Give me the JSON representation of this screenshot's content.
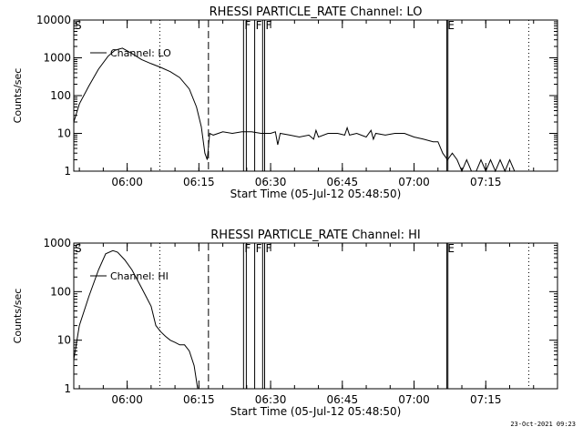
{
  "footer": {
    "timestamp": "23-Oct-2021 09:23"
  },
  "chart_data": [
    {
      "type": "line",
      "title": "RHESSI PARTICLE_RATE Channel: LO",
      "xlabel": "Start Time (05-Jul-12 05:48:50)",
      "ylabel": "Counts/sec",
      "yscale": "log",
      "ylim": [
        1,
        10000
      ],
      "y_ticks": [
        {
          "value": 1,
          "label": "1"
        },
        {
          "value": 10,
          "label": "10"
        },
        {
          "value": 100,
          "label": "100"
        },
        {
          "value": 1000,
          "label": "1000"
        },
        {
          "value": 10000,
          "label": "10000"
        }
      ],
      "xlim": [
        "05:48:50",
        "07:30:00"
      ],
      "x_ticks": [
        {
          "value": "06:00",
          "label": "06:00"
        },
        {
          "value": "06:15",
          "label": "06:15"
        },
        {
          "value": "06:30",
          "label": "06:30"
        },
        {
          "value": "06:45",
          "label": "06:45"
        },
        {
          "value": "07:00",
          "label": "07:00"
        },
        {
          "value": "07:15",
          "label": "07:15"
        }
      ],
      "series": [
        {
          "name": "Channel: LO",
          "x": [
            "05:48:50",
            "05:50:00",
            "05:52:00",
            "05:54:00",
            "05:56:00",
            "05:57:30",
            "05:59:00",
            "06:01:00",
            "06:03:00",
            "06:05:00",
            "06:07:00",
            "06:09:00",
            "06:11:00",
            "06:13:00",
            "06:14:30",
            "06:15:30",
            "06:16:15",
            "06:16:45",
            "06:17:15",
            "06:18:00",
            "06:20:00",
            "06:22:00",
            "06:24:00",
            "06:26:00",
            "06:28:00",
            "06:30:00",
            "06:31:00",
            "06:31:30",
            "06:32:00",
            "06:34:00",
            "06:36:00",
            "06:38:00",
            "06:39:00",
            "06:39:30",
            "06:40:00",
            "06:42:00",
            "06:44:00",
            "06:45:30",
            "06:46:00",
            "06:46:30",
            "06:48:00",
            "06:50:00",
            "06:51:00",
            "06:51:30",
            "06:52:00",
            "06:54:00",
            "06:56:00",
            "06:58:00",
            "07:00:00",
            "07:02:00",
            "07:04:00",
            "07:05:00",
            "07:06:00",
            "07:07:00",
            "07:08:00",
            "07:09:00",
            "07:10:00",
            "07:11:00",
            "07:12:00",
            "07:13:00",
            "07:14:00",
            "07:15:00",
            "07:16:00",
            "07:17:00",
            "07:18:00",
            "07:19:00",
            "07:20:00",
            "07:21:00",
            "07:22:00"
          ],
          "y": [
            20,
            60,
            180,
            500,
            1100,
            1600,
            1800,
            1300,
            900,
            700,
            560,
            430,
            300,
            150,
            50,
            15,
            3,
            2,
            10,
            9,
            11,
            10,
            11,
            11,
            10,
            10,
            11,
            5,
            10,
            9,
            8,
            9,
            7,
            12,
            8,
            10,
            10,
            9,
            14,
            9,
            10,
            8,
            12,
            7,
            10,
            9,
            10,
            10,
            8,
            7,
            6,
            6,
            3,
            2,
            3,
            2,
            1,
            2,
            1,
            1,
            2,
            1,
            2,
            1,
            2,
            1,
            2,
            1,
            1
          ]
        }
      ],
      "vlines": [
        {
          "x": "06:06:50",
          "style": "dotted"
        },
        {
          "x": "06:17:00",
          "style": "dashed"
        },
        {
          "x": "06:24:20",
          "style": "solid",
          "label": "F"
        },
        {
          "x": "06:24:55",
          "style": "solid"
        },
        {
          "x": "06:26:40",
          "style": "solid",
          "label": "F"
        },
        {
          "x": "06:28:20",
          "style": "solid"
        },
        {
          "x": "06:28:45",
          "style": "solid",
          "label": "F"
        },
        {
          "x": "07:06:50",
          "style": "solid",
          "label": "E"
        },
        {
          "x": "07:07:05",
          "style": "solid"
        },
        {
          "x": "07:24:00",
          "style": "dotted"
        }
      ],
      "corner_label": "S"
    },
    {
      "type": "line",
      "title": "RHESSI PARTICLE_RATE Channel: HI",
      "xlabel": "Start Time (05-Jul-12 05:48:50)",
      "ylabel": "Counts/sec",
      "yscale": "log",
      "ylim": [
        1,
        1000
      ],
      "y_ticks": [
        {
          "value": 1,
          "label": "1"
        },
        {
          "value": 10,
          "label": "10"
        },
        {
          "value": 100,
          "label": "100"
        },
        {
          "value": 1000,
          "label": "1000"
        }
      ],
      "xlim": [
        "05:48:50",
        "07:30:00"
      ],
      "x_ticks": [
        {
          "value": "06:00",
          "label": "06:00"
        },
        {
          "value": "06:15",
          "label": "06:15"
        },
        {
          "value": "06:30",
          "label": "06:30"
        },
        {
          "value": "06:45",
          "label": "06:45"
        },
        {
          "value": "07:00",
          "label": "07:00"
        },
        {
          "value": "07:15",
          "label": "07:15"
        }
      ],
      "series": [
        {
          "name": "Channel: HI",
          "x": [
            "05:48:50",
            "05:50:00",
            "05:52:00",
            "05:54:00",
            "05:55:30",
            "05:57:00",
            "05:58:00",
            "05:59:30",
            "06:01:00",
            "06:03:00",
            "06:05:00",
            "06:06:00",
            "06:07:00",
            "06:08:00",
            "06:09:00",
            "06:10:00",
            "06:11:00",
            "06:12:00",
            "06:13:00",
            "06:14:00",
            "06:14:45"
          ],
          "y": [
            4,
            20,
            80,
            280,
            600,
            700,
            650,
            450,
            280,
            120,
            50,
            20,
            15,
            12,
            10,
            9,
            8,
            8,
            6,
            3,
            1
          ]
        }
      ],
      "vlines": [
        {
          "x": "06:06:50",
          "style": "dotted"
        },
        {
          "x": "06:17:00",
          "style": "dashed"
        },
        {
          "x": "06:24:20",
          "style": "solid",
          "label": "F"
        },
        {
          "x": "06:24:55",
          "style": "solid"
        },
        {
          "x": "06:26:40",
          "style": "solid",
          "label": "F"
        },
        {
          "x": "06:28:20",
          "style": "solid"
        },
        {
          "x": "06:28:45",
          "style": "solid",
          "label": "F"
        },
        {
          "x": "07:06:50",
          "style": "solid",
          "label": "E"
        },
        {
          "x": "07:07:05",
          "style": "solid"
        },
        {
          "x": "07:24:00",
          "style": "dotted"
        }
      ],
      "corner_label": "S"
    }
  ]
}
